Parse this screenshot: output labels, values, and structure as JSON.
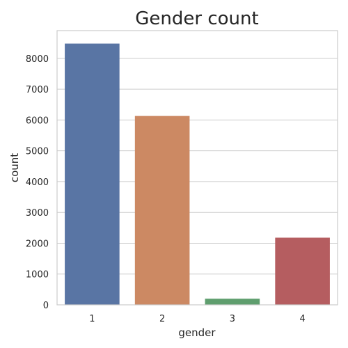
{
  "chart_data": {
    "type": "bar",
    "title": "Gender count",
    "xlabel": "gender",
    "ylabel": "count",
    "categories": [
      "1",
      "2",
      "3",
      "4"
    ],
    "values": [
      8480,
      6130,
      200,
      2180
    ],
    "colors": [
      "#5975a4",
      "#cc8963",
      "#5f9e6e",
      "#b55d60"
    ],
    "ylim": [
      0,
      8900
    ],
    "yticks": [
      0,
      1000,
      2000,
      3000,
      4000,
      5000,
      6000,
      7000,
      8000
    ],
    "grid": true,
    "legend": "none"
  }
}
